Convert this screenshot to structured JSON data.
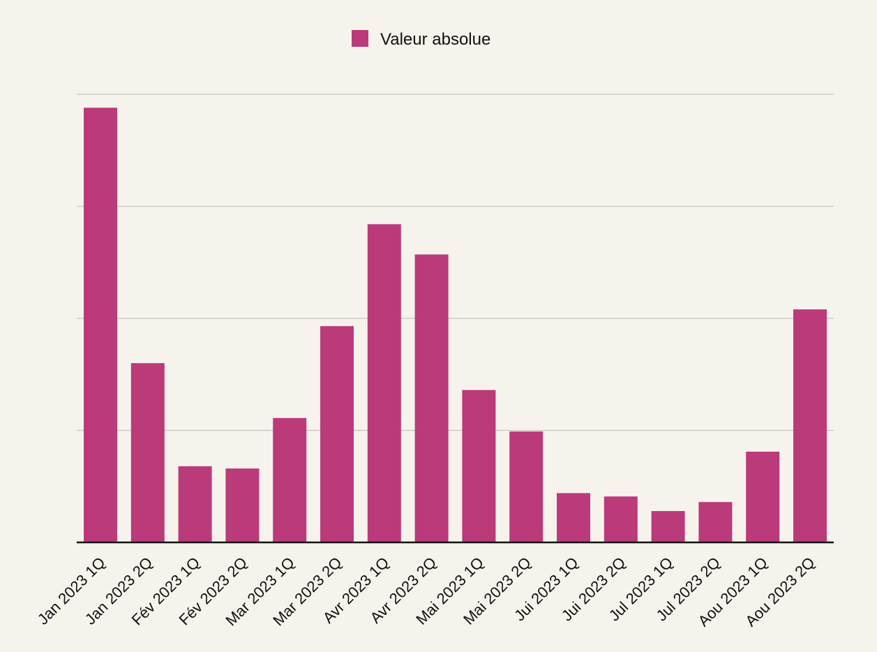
{
  "chart_data": {
    "type": "bar",
    "title": "",
    "xlabel": "",
    "ylabel": "",
    "categories": [
      "Jan 2023 1Q",
      "Jan 2023 2Q",
      "Fév 2023 1Q",
      "Fév 2023 2Q",
      "Mar 2023 1Q",
      "Mar 2023 2Q",
      "Avr 2023 1Q",
      "Avr 2023 2Q",
      "Mai 2023 1Q",
      "Mai 2023 2Q",
      "Jui 2023 1Q",
      "Jui 2023 2Q",
      "Jul 2023 1Q",
      "Jul 2023 2Q",
      "Aou 2023 1Q",
      "Aou 2023 2Q"
    ],
    "series": [
      {
        "name": "Valeur absolue",
        "values": [
          3.88,
          1.6,
          0.68,
          0.66,
          1.11,
          1.93,
          2.84,
          2.57,
          1.36,
          0.99,
          0.44,
          0.41,
          0.28,
          0.36,
          0.81,
          2.08
        ]
      }
    ],
    "ylim": [
      0,
      4
    ],
    "yticks": [
      0,
      1,
      2,
      3,
      4
    ],
    "y_tick_labels_visible": false,
    "grid": "horizontal",
    "legend": {
      "position": "top-center",
      "entries": [
        "Valeur absolue"
      ]
    },
    "colors": {
      "bar": "#bb3a7a",
      "grid": "#c6c3bc",
      "axis": "#111111",
      "background": "#f6f3ec"
    }
  }
}
